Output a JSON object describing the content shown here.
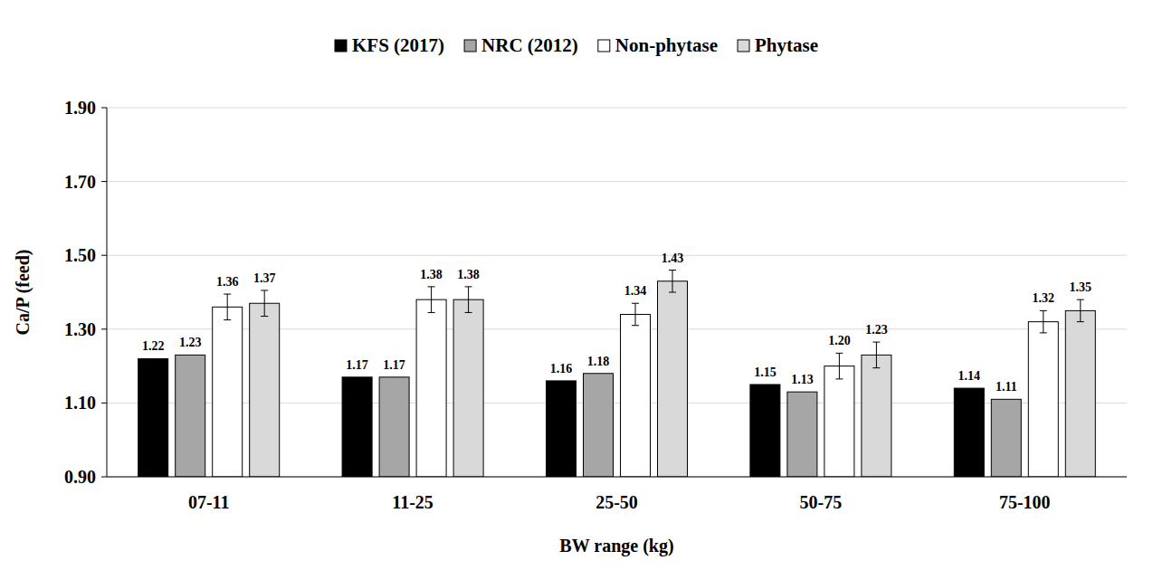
{
  "chart_data": {
    "type": "bar",
    "x_label": "BW range (kg)",
    "y_label": "Ca/P (feed)",
    "categories": [
      "07-11",
      "11-25",
      "25-50",
      "50-75",
      "75-100"
    ],
    "series": [
      {
        "name": "KFS (2017)",
        "color": "#000000",
        "values": [
          1.22,
          1.17,
          1.16,
          1.15,
          1.14
        ],
        "value_labels": [
          "1.22",
          "1.17",
          "1.16",
          "1.15",
          "1.14"
        ]
      },
      {
        "name": "NRC (2012)",
        "color": "#a6a6a6",
        "values": [
          1.23,
          1.17,
          1.18,
          1.13,
          1.11
        ],
        "value_labels": [
          "1.23",
          "1.17",
          "1.18",
          "1.13",
          "1.11"
        ]
      },
      {
        "name": "Non-phytase",
        "color": "#ffffff",
        "values": [
          1.36,
          1.38,
          1.34,
          1.2,
          1.32
        ],
        "value_labels": [
          "1.36",
          "1.38",
          "1.34",
          "1.20",
          "1.32"
        ],
        "errors": [
          0.035,
          0.035,
          0.03,
          0.035,
          0.03
        ]
      },
      {
        "name": "Phytase",
        "color": "#d9d9d9",
        "values": [
          1.37,
          1.38,
          1.43,
          1.23,
          1.35
        ],
        "value_labels": [
          "1.37",
          "1.38",
          "1.43",
          "1.23",
          "1.35"
        ],
        "errors": [
          0.035,
          0.035,
          0.03,
          0.035,
          0.03
        ]
      }
    ],
    "ylim": [
      0.9,
      1.9
    ],
    "yticks": [
      {
        "value": 0.9,
        "label": "0.90"
      },
      {
        "value": 1.1,
        "label": "1.10"
      },
      {
        "value": 1.3,
        "label": "1.30"
      },
      {
        "value": 1.5,
        "label": "1.50"
      },
      {
        "value": 1.7,
        "label": "1.70"
      },
      {
        "value": 1.9,
        "label": "1.90"
      }
    ],
    "grid": true,
    "legend": "top",
    "data_labels": true
  }
}
